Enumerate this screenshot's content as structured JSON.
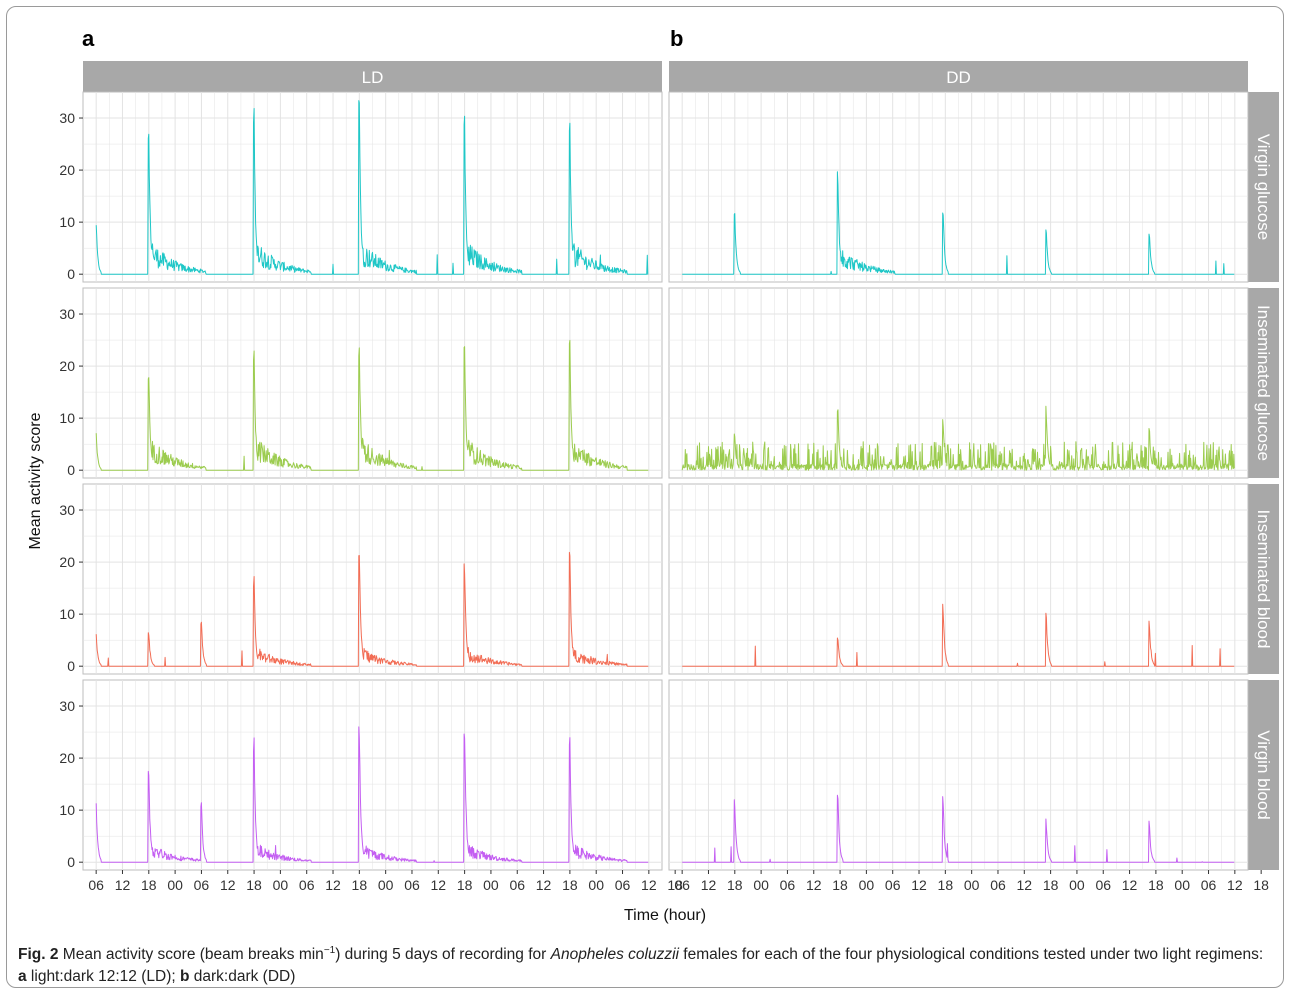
{
  "panels": [
    {
      "letter": "a",
      "regimen": "LD"
    },
    {
      "letter": "b",
      "regimen": "DD"
    }
  ],
  "conditions": [
    "Virgin glucose",
    "Inseminated glucose",
    "Inseminated blood",
    "Virgin blood"
  ],
  "axis": {
    "ylabel": "Mean activity score",
    "xlabel": "Time (hour)",
    "yticks": [
      0,
      10,
      20,
      30
    ],
    "xticks_LD": [
      "06",
      "12",
      "18",
      "00",
      "06",
      "12",
      "18",
      "00",
      "06",
      "12",
      "18",
      "00",
      "06",
      "12",
      "18",
      "00",
      "06",
      "12",
      "18",
      "00",
      "06",
      "12",
      "18"
    ],
    "xticks_DD": [
      "06",
      "12",
      "18",
      "00",
      "06",
      "12",
      "18",
      "00",
      "06",
      "12",
      "18",
      "00",
      "06",
      "12",
      "18",
      "00",
      "06",
      "12",
      "18",
      "00",
      "06",
      "12",
      "18"
    ]
  },
  "caption": {
    "fig_label": "Fig. 2",
    "text1": "Mean activity score (beam breaks min",
    "superscript": "−1",
    "text2": ") during 5 days of recording for ",
    "species": "Anopheles coluzzii",
    "text3": " females for each of the four physiological conditions tested under two light regimens: ",
    "a_label": "a",
    "a_text": " light:dark 12:12 (LD); ",
    "b_label": "b",
    "b_text": " dark:dark (DD)"
  },
  "colors": {
    "Virgin glucose": "#1fc7c7",
    "Inseminated glucose": "#9ccc4f",
    "Inseminated blood": "#f26d55",
    "Virgin blood": "#c45ff2",
    "strip": "#a8a8a8",
    "grid": "#e3e3e3"
  },
  "chart_data": {
    "type": "line",
    "x_unit": "hour of recording (0 = first 06:00 tick)",
    "xlim": [
      -3,
      129
    ],
    "ylim": [
      -1.5,
      35
    ],
    "series": [
      {
        "regimen": "LD",
        "condition": "Virgin glucose",
        "peaks": [
          {
            "x": 0,
            "y": 10.5
          },
          {
            "x": 12,
            "y": 29.5
          },
          {
            "x": 36,
            "y": 32
          },
          {
            "x": 60,
            "y": 34.5
          },
          {
            "x": 84,
            "y": 30.5
          },
          {
            "x": 108,
            "y": 30
          }
        ]
      },
      {
        "regimen": "DD",
        "condition": "Virgin glucose",
        "peaks": [
          {
            "x": 12,
            "y": 12.5
          },
          {
            "x": 35.5,
            "y": 20.5
          },
          {
            "x": 59.5,
            "y": 12.5
          },
          {
            "x": 83,
            "y": 9
          },
          {
            "x": 106.5,
            "y": 9
          }
        ]
      },
      {
        "regimen": "LD",
        "condition": "Inseminated glucose",
        "peaks": [
          {
            "x": 0,
            "y": 7.5
          },
          {
            "x": 12,
            "y": 20
          },
          {
            "x": 36,
            "y": 23.5
          },
          {
            "x": 60,
            "y": 24
          },
          {
            "x": 84,
            "y": 25
          },
          {
            "x": 108,
            "y": 27
          }
        ]
      },
      {
        "regimen": "DD",
        "condition": "Inseminated glucose",
        "peaks": [
          {
            "x": 12,
            "y": 7
          },
          {
            "x": 35.5,
            "y": 13
          },
          {
            "x": 59.5,
            "y": 10.5
          },
          {
            "x": 83,
            "y": 12.5
          },
          {
            "x": 106.5,
            "y": 9
          }
        ]
      },
      {
        "regimen": "LD",
        "condition": "Inseminated blood",
        "peaks": [
          {
            "x": 0,
            "y": 7
          },
          {
            "x": 12,
            "y": 7
          },
          {
            "x": 24,
            "y": 9
          },
          {
            "x": 36,
            "y": 17.5
          },
          {
            "x": 60,
            "y": 24.5
          },
          {
            "x": 84,
            "y": 20.5
          },
          {
            "x": 108,
            "y": 22.5
          }
        ]
      },
      {
        "regimen": "DD",
        "condition": "Inseminated blood",
        "peaks": [
          {
            "x": 35.5,
            "y": 6
          },
          {
            "x": 59.5,
            "y": 12
          },
          {
            "x": 83,
            "y": 11.5
          },
          {
            "x": 106.5,
            "y": 9
          }
        ]
      },
      {
        "regimen": "LD",
        "condition": "Virgin blood",
        "peaks": [
          {
            "x": 0,
            "y": 12.5
          },
          {
            "x": 12,
            "y": 19
          },
          {
            "x": 24,
            "y": 11.5
          },
          {
            "x": 36,
            "y": 24
          },
          {
            "x": 60,
            "y": 28
          },
          {
            "x": 84,
            "y": 28
          },
          {
            "x": 108,
            "y": 24.5
          }
        ]
      },
      {
        "regimen": "DD",
        "condition": "Virgin blood",
        "peaks": [
          {
            "x": 12,
            "y": 12
          },
          {
            "x": 35.5,
            "y": 13.5
          },
          {
            "x": 59.5,
            "y": 13
          },
          {
            "x": 83,
            "y": 8.5
          },
          {
            "x": 106.5,
            "y": 8
          }
        ]
      }
    ]
  }
}
